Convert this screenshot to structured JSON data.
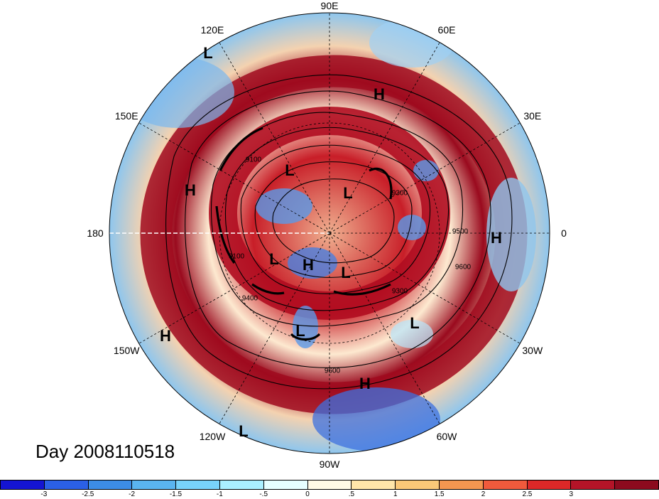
{
  "title": "Day 2008110518",
  "longitude_labels": [
    {
      "text": "90E",
      "angle": 90
    },
    {
      "text": "60E",
      "angle": 60
    },
    {
      "text": "30E",
      "angle": 30
    },
    {
      "text": "0",
      "angle": 0
    },
    {
      "text": "30W",
      "angle": -30
    },
    {
      "text": "60W",
      "angle": -60
    },
    {
      "text": "90W",
      "angle": -90
    },
    {
      "text": "120W",
      "angle": -120
    },
    {
      "text": "150W",
      "angle": -150
    },
    {
      "text": "180",
      "angle": 180
    },
    {
      "text": "150E",
      "angle": 150
    },
    {
      "text": "120E",
      "angle": 120
    }
  ],
  "pressure_centers": [
    {
      "text": "L",
      "pos": [
        293,
        75
      ]
    },
    {
      "text": "H",
      "pos": [
        534,
        133
      ]
    },
    {
      "text": "H",
      "pos": [
        268,
        268
      ]
    },
    {
      "text": "L",
      "pos": [
        408,
        240
      ]
    },
    {
      "text": "L",
      "pos": [
        490,
        272
      ]
    },
    {
      "text": "H",
      "pos": [
        699,
        335
      ]
    },
    {
      "text": "L",
      "pos": [
        386,
        365
      ]
    },
    {
      "text": "H",
      "pos": [
        434,
        373
      ]
    },
    {
      "text": "L",
      "pos": [
        487,
        384
      ]
    },
    {
      "text": "L",
      "pos": [
        584,
        455
      ]
    },
    {
      "text": "L",
      "pos": [
        423,
        466
      ]
    },
    {
      "text": "H",
      "pos": [
        233,
        473
      ]
    },
    {
      "text": "H",
      "pos": [
        514,
        540
      ]
    },
    {
      "text": "L",
      "pos": [
        343,
        607
      ]
    }
  ],
  "contour_labels": [
    {
      "text": "9100",
      "pos": [
        357,
        225
      ]
    },
    {
      "text": "9300",
      "pos": [
        563,
        272
      ]
    },
    {
      "text": "9500",
      "pos": [
        648,
        326
      ]
    },
    {
      "text": "9100",
      "pos": [
        333,
        361
      ]
    },
    {
      "text": "9600",
      "pos": [
        652,
        376
      ]
    },
    {
      "text": "9400",
      "pos": [
        352,
        420
      ]
    },
    {
      "text": "9300",
      "pos": [
        563,
        410
      ]
    },
    {
      "text": "9600",
      "pos": [
        468,
        522
      ]
    }
  ],
  "colorbar": {
    "colors": [
      "#1414d2",
      "#2b60e6",
      "#3c8ce6",
      "#5ab4f0",
      "#78d2fa",
      "#aaf0ff",
      "#e6ffff",
      "#fffae6",
      "#ffe6aa",
      "#fac878",
      "#f49650",
      "#f05a3c",
      "#dc2828",
      "#b41428",
      "#8c0a1e"
    ],
    "tick_labels": [
      "-3",
      "-2.5",
      "-2",
      "-1.5",
      "-1",
      "-.5",
      "0",
      ".5",
      "1",
      "1.5",
      "2",
      "2.5",
      "3"
    ]
  }
}
